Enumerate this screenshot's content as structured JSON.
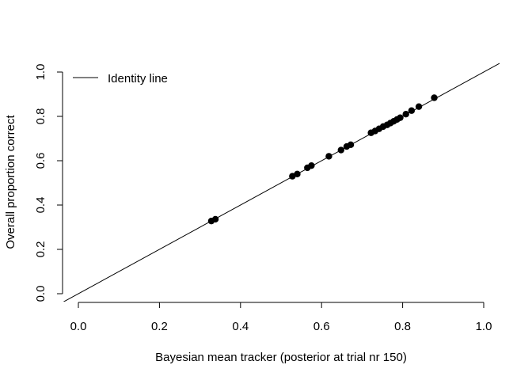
{
  "chart_data": {
    "type": "scatter",
    "title": "",
    "xlabel": "Bayesian mean tracker (posterior at trial nr 150)",
    "ylabel": "Overall proportion correct",
    "xlim": [
      0.0,
      1.0
    ],
    "ylim": [
      0.0,
      1.0
    ],
    "xticks": [
      "0.0",
      "0.2",
      "0.4",
      "0.6",
      "0.8",
      "1.0"
    ],
    "yticks": [
      "0.0",
      "0.2",
      "0.4",
      "0.6",
      "0.8",
      "1.0"
    ],
    "grid": false,
    "legend": {
      "position": "top-left",
      "entries": [
        "Identity line"
      ]
    },
    "reference_line": {
      "name": "Identity line",
      "slope": 1,
      "intercept": 0
    },
    "points": [
      {
        "x": 0.328,
        "y": 0.328
      },
      {
        "x": 0.338,
        "y": 0.336
      },
      {
        "x": 0.528,
        "y": 0.53
      },
      {
        "x": 0.54,
        "y": 0.54
      },
      {
        "x": 0.565,
        "y": 0.568
      },
      {
        "x": 0.575,
        "y": 0.578
      },
      {
        "x": 0.618,
        "y": 0.62
      },
      {
        "x": 0.648,
        "y": 0.648
      },
      {
        "x": 0.662,
        "y": 0.664
      },
      {
        "x": 0.672,
        "y": 0.672
      },
      {
        "x": 0.722,
        "y": 0.726
      },
      {
        "x": 0.732,
        "y": 0.734
      },
      {
        "x": 0.742,
        "y": 0.744
      },
      {
        "x": 0.752,
        "y": 0.754
      },
      {
        "x": 0.762,
        "y": 0.762
      },
      {
        "x": 0.77,
        "y": 0.77
      },
      {
        "x": 0.778,
        "y": 0.778
      },
      {
        "x": 0.786,
        "y": 0.786
      },
      {
        "x": 0.794,
        "y": 0.794
      },
      {
        "x": 0.808,
        "y": 0.81
      },
      {
        "x": 0.822,
        "y": 0.826
      },
      {
        "x": 0.84,
        "y": 0.844
      },
      {
        "x": 0.878,
        "y": 0.884
      }
    ]
  }
}
